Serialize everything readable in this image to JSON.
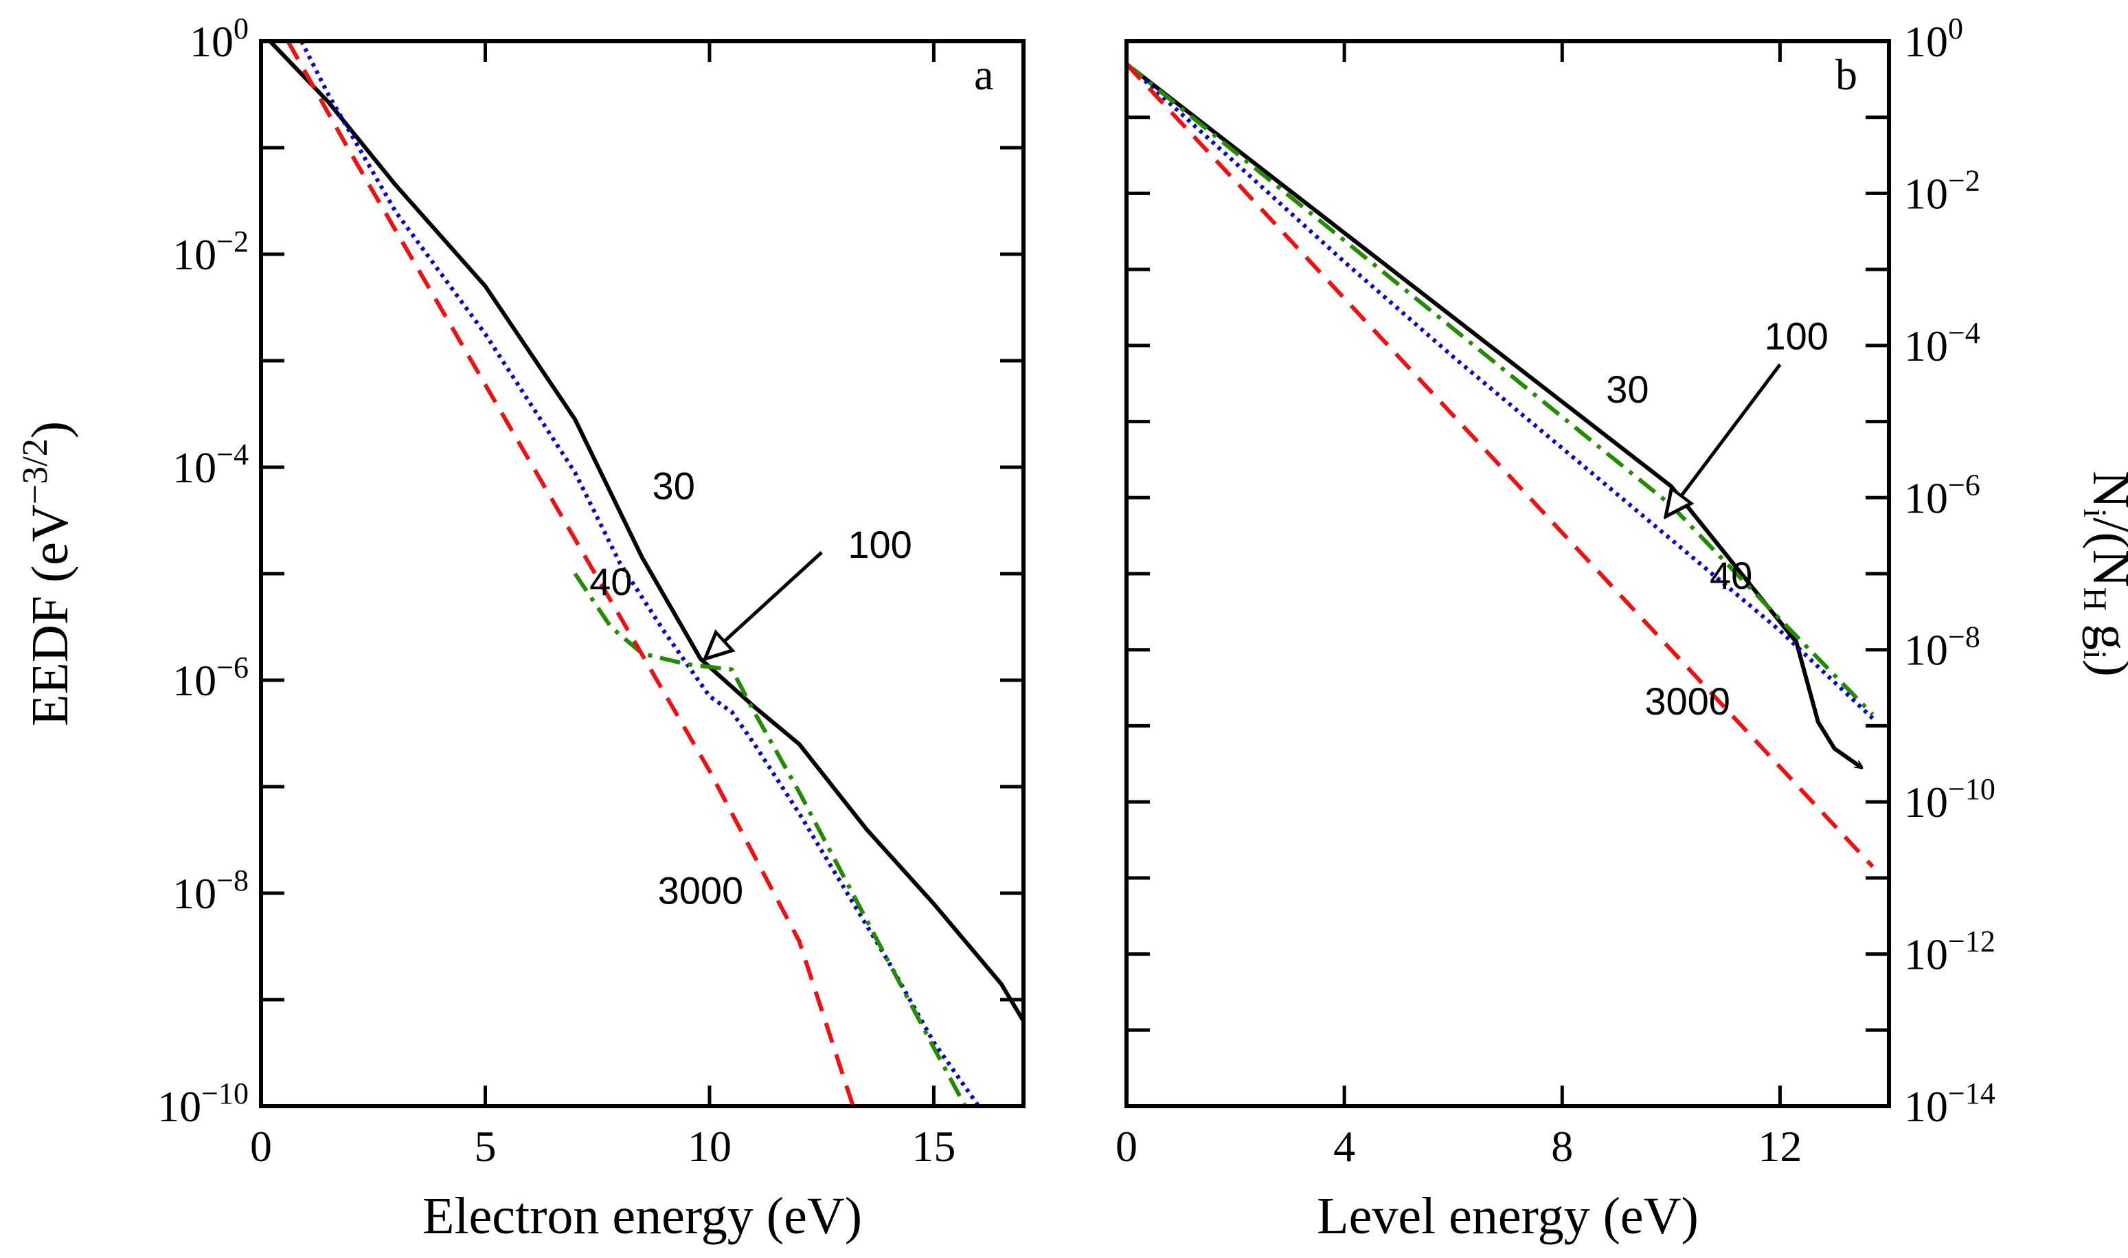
{
  "chart_data": [
    {
      "panel": "a",
      "type": "line",
      "xlabel": "Electron energy (eV)",
      "ylabel": "EEDF (eV^-3/2)",
      "ylabel_parts": {
        "base": "EEDF (eV",
        "exp": "−3/2",
        "close": ")"
      },
      "xlim": [
        0,
        17
      ],
      "ylim_log10": [
        -10,
        0
      ],
      "y_scale": "log",
      "x_ticks": [
        0,
        5,
        10,
        15
      ],
      "x_tick_labels": [
        "0",
        "5",
        "10",
        "15"
      ],
      "y_ticks": [
        0,
        -2,
        -4,
        -6,
        -8,
        -10
      ],
      "y_tick_labels": [
        {
          "base": "10",
          "exp": "0"
        },
        {
          "base": "10",
          "exp": "−2"
        },
        {
          "base": "10",
          "exp": "−4"
        },
        {
          "base": "10",
          "exp": "−6"
        },
        {
          "base": "10",
          "exp": "−8"
        },
        {
          "base": "10",
          "exp": "−10"
        }
      ],
      "series": [
        {
          "name": "30",
          "style": "solid",
          "color": "#000000",
          "x": [
            0.2,
            1.5,
            3,
            5,
            7,
            8.5,
            9.8,
            11,
            12,
            13.5,
            15,
            16.5,
            17
          ],
          "log10y": [
            0,
            -0.57,
            -1.35,
            -2.3,
            -3.55,
            -4.85,
            -5.8,
            -6.25,
            -6.6,
            -7.4,
            -8.1,
            -8.85,
            -9.2
          ]
        },
        {
          "name": "40",
          "style": "dotted",
          "color": "#0000cc",
          "x": [
            0.9,
            1.5,
            3,
            5,
            7,
            8,
            9,
            10,
            10.5,
            11,
            12,
            13,
            14,
            15,
            16
          ],
          "log10y": [
            0,
            -0.5,
            -1.6,
            -2.75,
            -4.05,
            -4.9,
            -5.55,
            -6.15,
            -6.3,
            -6.6,
            -7.25,
            -7.95,
            -8.65,
            -9.4,
            -10
          ]
        },
        {
          "name": "100",
          "style": "dashdot",
          "color": "#228b00",
          "x": [
            7,
            7.8,
            8.5,
            9.5,
            10.5,
            11,
            12,
            13,
            14,
            15,
            15.7
          ],
          "log10y": [
            -5.0,
            -5.5,
            -5.75,
            -5.85,
            -5.9,
            -6.3,
            -7.05,
            -7.85,
            -8.65,
            -9.45,
            -10
          ]
        },
        {
          "name": "3000",
          "style": "dashed",
          "color": "#ee1111",
          "x": [
            0.6,
            2,
            4,
            6,
            8,
            10,
            12,
            13.2
          ],
          "log10y": [
            0,
            -1.05,
            -2.5,
            -3.95,
            -5.4,
            -6.85,
            -8.45,
            -10
          ]
        }
      ],
      "curve_labels": [
        {
          "text": "30",
          "x": 9.2,
          "log10y": -4.3
        },
        {
          "text": "40",
          "x": 7.8,
          "log10y": -5.2
        },
        {
          "text": "100",
          "x": 13.8,
          "log10y": -4.85
        },
        {
          "text": "3000",
          "x": 9.8,
          "log10y": -8.1
        }
      ],
      "annotation_arrow": {
        "from": {
          "x": 12.5,
          "log10y": -4.8
        },
        "to": {
          "x": 9.9,
          "log10y": -5.8
        }
      },
      "panel_label": "a"
    },
    {
      "panel": "b",
      "type": "line",
      "xlabel": "Level energy (eV)",
      "ylabel": "Ni/(NH gi)",
      "ylabel_parts": {
        "base": "N",
        "sub1": "i",
        "mid": "/(N",
        "sub2": "H",
        "mid2": " g",
        "sub3": "i",
        "close": ")"
      },
      "xlim": [
        0,
        14
      ],
      "ylim_log10": [
        -14,
        0
      ],
      "y_scale": "log",
      "x_ticks": [
        0,
        4,
        8,
        12
      ],
      "x_tick_labels": [
        "0",
        "4",
        "8",
        "12"
      ],
      "y_ticks": [
        0,
        -2,
        -4,
        -6,
        -8,
        -10,
        -12,
        -14
      ],
      "y_tick_labels": [
        {
          "base": "10",
          "exp": "0"
        },
        {
          "base": "10",
          "exp": "−2"
        },
        {
          "base": "10",
          "exp": "−4"
        },
        {
          "base": "10",
          "exp": "−6"
        },
        {
          "base": "10",
          "exp": "−8"
        },
        {
          "base": "10",
          "exp": "−10"
        },
        {
          "base": "10",
          "exp": "−12"
        },
        {
          "base": "10",
          "exp": "−14"
        }
      ],
      "series": [
        {
          "name": "30",
          "style": "solid",
          "color": "#000000",
          "x": [
            0,
            10,
            12.3,
            12.7,
            13.0,
            13.5
          ],
          "log10y": [
            -0.3,
            -5.85,
            -7.9,
            -8.95,
            -9.3,
            -9.55
          ]
        },
        {
          "name": "40",
          "style": "dotted",
          "color": "#0000cc",
          "x": [
            0,
            2,
            4,
            6,
            8,
            10,
            12,
            13.7
          ],
          "log10y": [
            -0.3,
            -1.6,
            -2.9,
            -4.15,
            -5.35,
            -6.55,
            -7.75,
            -8.9
          ]
        },
        {
          "name": "100",
          "style": "dashdot",
          "color": "#228b00",
          "x": [
            0,
            10,
            12,
            13.7
          ],
          "log10y": [
            -0.3,
            -6.1,
            -7.6,
            -8.85
          ]
        },
        {
          "name": "3000",
          "style": "dashed",
          "color": "#ee1111",
          "x": [
            0,
            13.7
          ],
          "log10y": [
            -0.3,
            -10.85
          ]
        }
      ],
      "curve_labels": [
        {
          "text": "30",
          "x": 9.2,
          "log10y": -4.75
        },
        {
          "text": "100",
          "x": 12.3,
          "log10y": -4.05
        },
        {
          "text": "40",
          "x": 11.1,
          "log10y": -7.2
        },
        {
          "text": "3000",
          "x": 10.3,
          "log10y": -8.85
        }
      ],
      "annotation_arrow": {
        "from": {
          "x": 12.0,
          "log10y": -4.25
        },
        "to": {
          "x": 9.9,
          "log10y": -6.25
        }
      },
      "panel_label": "b"
    }
  ]
}
